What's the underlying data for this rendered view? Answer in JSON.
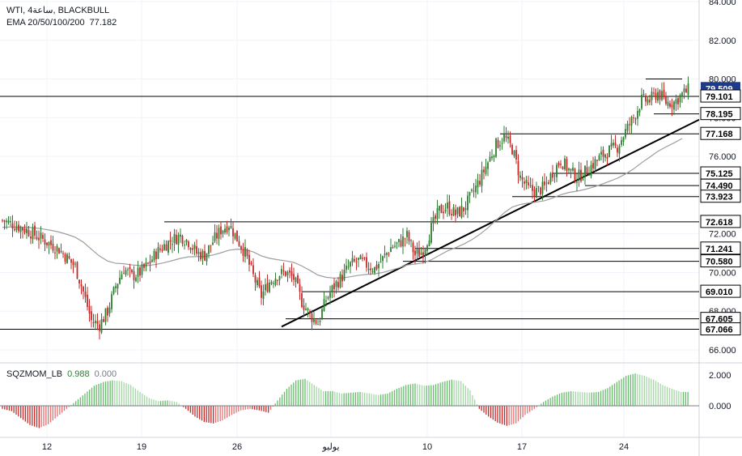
{
  "header": {
    "symbol": "WTI",
    "interval": "4ساعة",
    "source": "BLACKBULL",
    "indicator": "EMA 20/50/100/200",
    "indicator_value": "77.182"
  },
  "momentum": {
    "label": "SQZMOM_LB",
    "value1": "0.988",
    "value2": "0.000"
  },
  "colors": {
    "bull": "#26a69a",
    "bear": "#ef5350",
    "candle_up": "#2e7d32",
    "candle_down": "#c62828",
    "ema": "#9e9e9e",
    "level_line": "#000000",
    "current_price_bg": "#1e3a8a"
  },
  "chart_data": {
    "type": "candlestick",
    "y_axis_ticks": [
      "84.000",
      "82.000",
      "80.000",
      "78.000",
      "76.000",
      "74.000",
      "72.000",
      "70.000",
      "68.000",
      "66.000"
    ],
    "ylim": [
      65.3,
      84.2
    ],
    "x_ticks": [
      "12",
      "19",
      "26",
      "يوليو",
      "10",
      "17",
      "24"
    ],
    "price_labels": [
      "79.509",
      "79.101",
      "78.195",
      "77.168",
      "75.125",
      "74.490",
      "73.923",
      "72.618",
      "71.241",
      "70.580",
      "69.010",
      "67.605",
      "67.066"
    ],
    "current_price": "79.509",
    "horizontal_levels": [
      79.101,
      78.195,
      77.168,
      75.125,
      74.49,
      73.923,
      72.618,
      71.241,
      70.58,
      69.01,
      67.605,
      67.066
    ],
    "ema_label": "EMA 20/50/100/200",
    "momentum_axis_ticks": [
      "2.000",
      "0.000"
    ],
    "momentum_ylim": [
      -1.7,
      2.4
    ],
    "close_path": [
      [
        0,
        72.7
      ],
      [
        3,
        72.2
      ],
      [
        5,
        71.7
      ],
      [
        7,
        71.2
      ],
      [
        9,
        70.3
      ],
      [
        10,
        69.0
      ],
      [
        11,
        67.5
      ],
      [
        12,
        67.3
      ],
      [
        13,
        68.0
      ],
      [
        14,
        69.3
      ],
      [
        15,
        70.2
      ],
      [
        16,
        69.8
      ],
      [
        17,
        70.0
      ],
      [
        18,
        70.4
      ],
      [
        19,
        71.0
      ],
      [
        20,
        71.4
      ],
      [
        21,
        71.7
      ],
      [
        22,
        71.9
      ],
      [
        23,
        71.6
      ],
      [
        24,
        71.0
      ],
      [
        25,
        70.9
      ],
      [
        26,
        71.6
      ],
      [
        27,
        72.2
      ],
      [
        28,
        72.5
      ],
      [
        30,
        71.0
      ],
      [
        31,
        69.8
      ],
      [
        32,
        68.8
      ],
      [
        33,
        69.5
      ],
      [
        34,
        69.9
      ],
      [
        35,
        70.0
      ],
      [
        36,
        69.7
      ],
      [
        37,
        68.5
      ],
      [
        38,
        67.8
      ],
      [
        39,
        67.4
      ],
      [
        40,
        68.6
      ],
      [
        41,
        69.3
      ],
      [
        42,
        69.8
      ],
      [
        43,
        70.4
      ],
      [
        44,
        70.6
      ],
      [
        46,
        70.2
      ],
      [
        47,
        70.7
      ],
      [
        48,
        71.3
      ],
      [
        49,
        71.5
      ],
      [
        50,
        71.9
      ],
      [
        51,
        70.9
      ],
      [
        52,
        71.1
      ],
      [
        53,
        72.3
      ],
      [
        54,
        73.2
      ],
      [
        55,
        73.4
      ],
      [
        56,
        73.0
      ],
      [
        57,
        73.3
      ],
      [
        58,
        74.0
      ],
      [
        59,
        74.8
      ],
      [
        60,
        75.7
      ],
      [
        61,
        76.6
      ],
      [
        62,
        77.0
      ],
      [
        63,
        76.4
      ],
      [
        64,
        74.9
      ],
      [
        65,
        74.3
      ],
      [
        66,
        74.2
      ],
      [
        67,
        74.4
      ],
      [
        68,
        75.2
      ],
      [
        69,
        75.8
      ],
      [
        70,
        75.3
      ],
      [
        71,
        74.9
      ],
      [
        72,
        75.2
      ],
      [
        73,
        75.6
      ],
      [
        74,
        76.0
      ],
      [
        75,
        76.3
      ],
      [
        76,
        76.5
      ],
      [
        77,
        77.3
      ],
      [
        78,
        78.0
      ],
      [
        79,
        78.9
      ],
      [
        80,
        78.9
      ],
      [
        81,
        79.3
      ],
      [
        82,
        78.8
      ],
      [
        83,
        78.8
      ],
      [
        84,
        79.2
      ],
      [
        85,
        79.5
      ]
    ],
    "momentum_values": [
      -0.2,
      -0.35,
      -0.8,
      -1.25,
      -1.45,
      -1.2,
      -0.7,
      -0.2,
      0.3,
      0.8,
      1.3,
      1.55,
      1.65,
      1.6,
      1.35,
      0.9,
      0.5,
      0.3,
      0.35,
      0.25,
      -0.2,
      -0.7,
      -1.05,
      -1.15,
      -0.95,
      -0.6,
      -0.3,
      -0.2,
      -0.3,
      -0.45,
      0.35,
      1.1,
      1.65,
      1.75,
      1.35,
      0.95,
      0.95,
      0.8,
      0.85,
      0.9,
      0.8,
      0.7,
      0.8,
      1.1,
      1.35,
      1.45,
      1.3,
      1.35,
      1.55,
      1.7,
      1.6,
      1.0,
      -0.2,
      -0.7,
      -1.1,
      -1.3,
      -1.15,
      -0.6,
      -0.2,
      0.25,
      0.6,
      0.85,
      0.95,
      0.9,
      0.85,
      0.9,
      1.15,
      1.55,
      1.95,
      2.1,
      1.95,
      1.7,
      1.35,
      1.1,
      0.9
    ]
  }
}
